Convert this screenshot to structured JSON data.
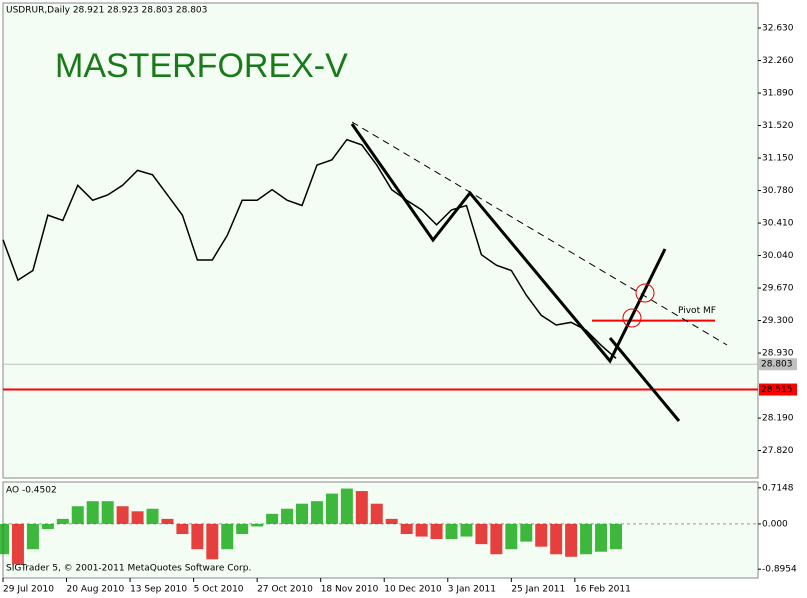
{
  "chart_data": [
    {
      "type": "line",
      "title": "USDRUR,Daily  28.921 28.923 28.803 28.803",
      "watermark": "MASTERFOREX-V",
      "x": [
        0,
        4,
        8,
        12,
        16,
        20,
        24,
        28,
        32,
        36,
        40,
        44,
        48,
        52,
        56,
        60,
        64,
        68,
        72,
        76,
        80,
        84,
        88,
        92,
        96,
        100,
        104,
        108,
        112,
        116,
        120,
        124,
        128,
        132,
        136,
        140,
        144,
        148,
        152,
        156,
        160,
        164
      ],
      "series": [
        {
          "name": "USDRUR",
          "color": "#000000",
          "values": [
            30.22,
            29.76,
            29.87,
            30.5,
            30.44,
            30.84,
            30.67,
            30.73,
            30.84,
            31.01,
            30.96,
            30.73,
            30.5,
            29.99,
            29.99,
            30.27,
            30.67,
            30.67,
            30.79,
            30.67,
            30.61,
            31.07,
            31.13,
            31.36,
            31.3,
            31.07,
            30.79,
            30.67,
            30.56,
            30.39,
            30.56,
            30.61,
            30.05,
            29.93,
            29.87,
            29.59,
            29.36,
            29.25,
            29.28,
            29.19,
            29.02,
            28.87
          ]
        }
      ],
      "xlim": [
        0,
        202
      ],
      "xticks": [
        {
          "value": 0,
          "label": "29 Jul 2010"
        },
        {
          "value": 17,
          "label": "20 Aug 2010"
        },
        {
          "value": 34,
          "label": "13 Sep 2010"
        },
        {
          "value": 51,
          "label": "5 Oct 2010"
        },
        {
          "value": 68,
          "label": "27 Oct 2010"
        },
        {
          "value": 85,
          "label": "18 Nov 2010"
        },
        {
          "value": 102,
          "label": "10 Dec 2010"
        },
        {
          "value": 119,
          "label": "3 Jan 2011"
        },
        {
          "value": 136,
          "label": "25 Jan 2011"
        },
        {
          "value": 153,
          "label": "16 Feb 2011"
        }
      ],
      "ylim": [
        27.508,
        32.915
      ],
      "yticks": [
        {
          "value": 32.63,
          "label": "32.630"
        },
        {
          "value": 32.26,
          "label": "32.260"
        },
        {
          "value": 31.89,
          "label": "31.890"
        },
        {
          "value": 31.52,
          "label": "31.520"
        },
        {
          "value": 31.15,
          "label": "31.150"
        },
        {
          "value": 30.78,
          "label": "30.780"
        },
        {
          "value": 30.41,
          "label": "30.410"
        },
        {
          "value": 30.04,
          "label": "30.040"
        },
        {
          "value": 29.67,
          "label": "29.670"
        },
        {
          "value": 29.3,
          "label": "29.300"
        },
        {
          "value": 28.93,
          "label": "28.930"
        },
        {
          "value": 28.19,
          "label": "28.190"
        },
        {
          "value": 27.82,
          "label": "27.820"
        }
      ],
      "hlines": [
        {
          "value": 28.803,
          "color": "#c0c0c0"
        },
        {
          "value": 28.515,
          "color": "#ff0000"
        }
      ],
      "pivot": {
        "label": "Pivot MF",
        "value": 29.3,
        "color": "#ff0000"
      },
      "footer": "SIGTrader 5, © 2001-2011 MetaQuotes Software Corp."
    },
    {
      "type": "bar",
      "title": "AO -0.4502",
      "up_color": "#00a000",
      "down_color": "#e00000",
      "values": [
        -0.6,
        -0.8,
        -0.5,
        -0.1,
        0.1,
        0.35,
        0.45,
        0.45,
        0.35,
        0.25,
        0.3,
        0.1,
        -0.2,
        -0.5,
        -0.7,
        -0.5,
        -0.2,
        -0.05,
        0.2,
        0.3,
        0.4,
        0.45,
        0.6,
        0.7,
        0.65,
        0.4,
        0.1,
        -0.2,
        -0.25,
        -0.3,
        -0.3,
        -0.25,
        -0.4,
        -0.6,
        -0.5,
        -0.35,
        -0.45,
        -0.6,
        -0.65,
        -0.6,
        -0.55,
        -0.5
      ],
      "ylim": [
        -1.07,
        0.79
      ],
      "yticks": [
        0.7148,
        {
          "value": 0,
          "label": "0.000"
        },
        -0.8954
      ]
    }
  ]
}
